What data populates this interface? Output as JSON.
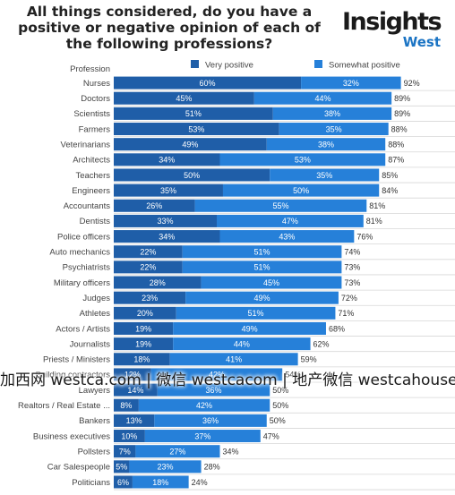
{
  "title": "All things considered, do you have a positive or negative opinion of each of the following professions?",
  "logo": {
    "main": "Insights",
    "sub": "West"
  },
  "watermark": "加西网 westca.com | 微信 westcacom | 地产微信 westcahouse",
  "chart_data": {
    "type": "bar",
    "orientation": "horizontal",
    "stacked": true,
    "category_header": "Profession",
    "categories": [
      "Nurses",
      "Doctors",
      "Scientists",
      "Farmers",
      "Veterinarians",
      "Architects",
      "Teachers",
      "Engineers",
      "Accountants",
      "Dentists",
      "Police officers",
      "Auto mechanics",
      "Psychiatrists",
      "Military officers",
      "Judges",
      "Athletes",
      "Actors / Artists",
      "Journalists",
      "Priests / Ministers",
      "Building contractors",
      "Lawyers",
      "Realtors / Real Estate ...",
      "Bankers",
      "Business executives",
      "Pollsters",
      "Car Salespeople",
      "Politicians"
    ],
    "series": [
      {
        "name": "Very positive",
        "color": "#1f5ea8",
        "values": [
          60,
          45,
          51,
          53,
          49,
          34,
          50,
          35,
          26,
          33,
          34,
          22,
          22,
          28,
          23,
          20,
          19,
          19,
          18,
          12,
          14,
          8,
          13,
          10,
          7,
          5,
          6
        ]
      },
      {
        "name": "Somewhat positive",
        "color": "#2680d9",
        "values": [
          32,
          44,
          38,
          35,
          38,
          53,
          35,
          50,
          55,
          47,
          43,
          51,
          51,
          45,
          49,
          51,
          49,
          44,
          41,
          42,
          36,
          42,
          36,
          37,
          27,
          23,
          18
        ]
      }
    ],
    "totals": [
      92,
      89,
      89,
      88,
      88,
      87,
      85,
      84,
      81,
      81,
      76,
      74,
      73,
      73,
      72,
      71,
      68,
      62,
      59,
      54,
      50,
      50,
      50,
      47,
      34,
      28,
      24
    ],
    "legend_position": "top",
    "xlim": [
      0,
      100
    ]
  }
}
